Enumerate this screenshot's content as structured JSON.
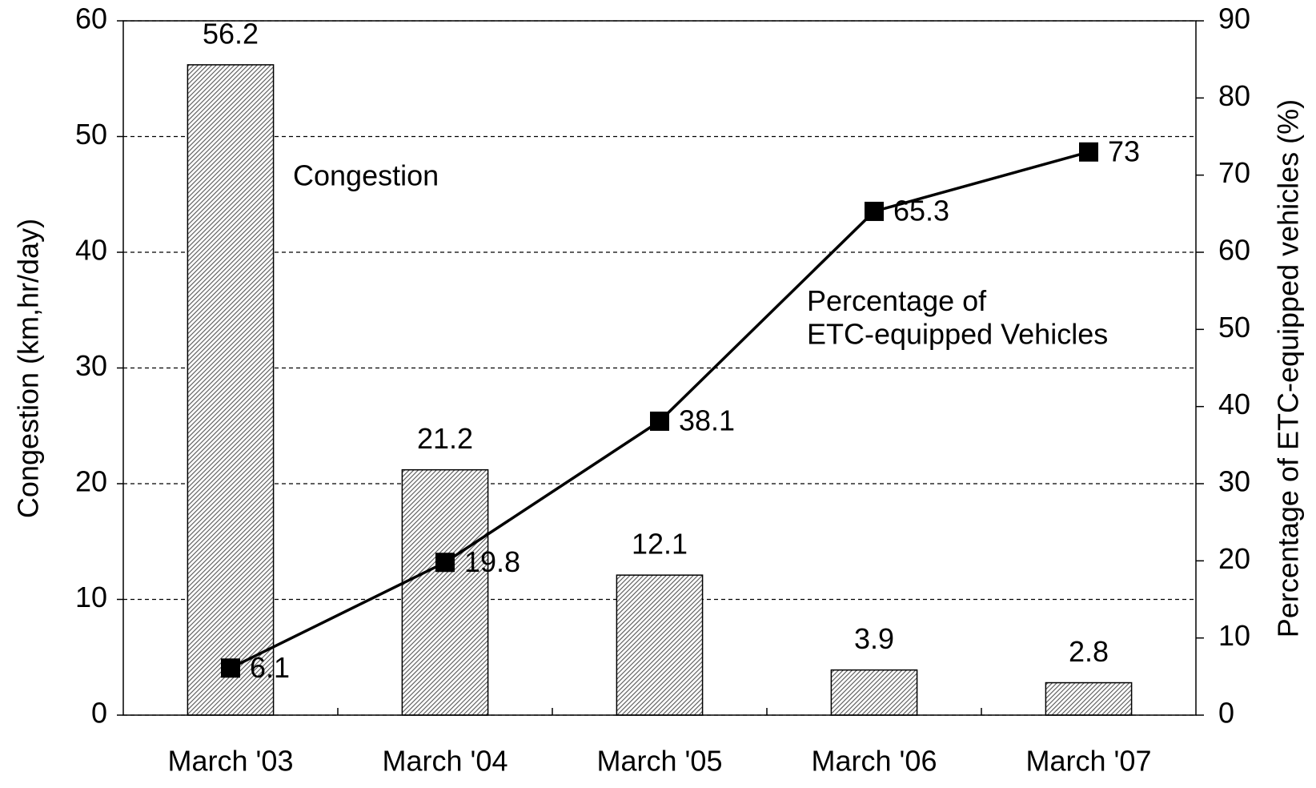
{
  "chart_data": {
    "type": "bar+line",
    "categories": [
      "March '03",
      "March '04",
      "March '05",
      "March '06",
      "March '07"
    ],
    "series": [
      {
        "name": "Congestion",
        "type": "bar",
        "color": "#808080",
        "values": [
          56.2,
          21.2,
          12.1,
          3.9,
          2.8
        ]
      },
      {
        "name": "Percentage of\nETC-equipped Vehicles",
        "type": "line",
        "axis": "y2",
        "color": "#000000",
        "values": [
          6.1,
          19.8,
          38.1,
          65.3,
          73
        ]
      }
    ],
    "ylabel": "Congestion (km,hr/day)",
    "y2label": "Percentage of ETC-equipped vehicles (%)",
    "ylim": [
      0,
      60
    ],
    "yticks": [
      0,
      10,
      20,
      30,
      40,
      50,
      60
    ],
    "y2lim": [
      0,
      90
    ],
    "y2ticks": [
      0,
      10,
      20,
      30,
      40,
      50,
      60,
      70,
      80,
      90
    ],
    "grid": true
  }
}
